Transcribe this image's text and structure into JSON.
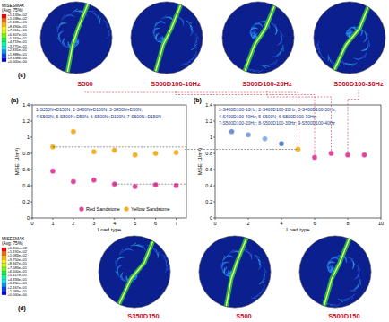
{
  "chart_data": [
    {
      "type": "scatter",
      "title": "(a)",
      "annotations": [
        "1-S350N+D150N; 2-S400N+D100N; 3-S450N+D50N;",
        "4-S500N; 5-S500N+D50N; 6-S500N+D100N; 7-S500N+D150N"
      ],
      "x_label": "Load type",
      "y_label": "MSE (J/m³)",
      "x": [
        1,
        2,
        3,
        4,
        5,
        6,
        7
      ],
      "series": [
        {
          "name": "Red Sandstone",
          "color": "#e0449e",
          "values": [
            0.58,
            0.45,
            0.47,
            0.42,
            0.39,
            0.41,
            0.4
          ]
        },
        {
          "name": "Yellow Sandstone",
          "color": "#f0b024",
          "values": [
            0.88,
            1.07,
            0.82,
            0.84,
            0.78,
            0.8,
            0.81
          ]
        }
      ],
      "xlim": [
        0,
        7.5
      ],
      "xticks": [
        0,
        1,
        2,
        3,
        4,
        5,
        6,
        7
      ],
      "ylim": [
        0,
        1.4
      ],
      "yticks": [
        0,
        0.2,
        0.4,
        0.6,
        0.8,
        1,
        1.2,
        1.4
      ],
      "legend": "bottom",
      "marker": "circle"
    },
    {
      "type": "scatter",
      "title": "(b)",
      "annotations": [
        "1-S400D100-10Hz; 2-S400D100-20Hz; 3-S400D100-30Hz;",
        "4-S400D100-40Hz; 5-S500N; 6-S500D100-10Hz;",
        "7-S500D100-20Hz; 8-S500D100-30Hz; 9-S500D100-40Hz"
      ],
      "x_label": "Load type",
      "y_label": "MSE (J/m³)",
      "x": [
        1,
        2,
        3,
        4,
        5,
        6,
        7,
        8,
        9
      ],
      "values": [
        1.07,
        1.03,
        0.98,
        0.92,
        0.85,
        0.75,
        0.8,
        0.78,
        0.78
      ],
      "colors": [
        "#6f8fd0",
        "#7f9fd8",
        "#8fb0e0",
        "#5a80c8",
        "#f0b024",
        "#e0449e",
        "#e0449e",
        "#e0449e",
        "#e0449e"
      ],
      "xlim": [
        0,
        10
      ],
      "xticks": [
        0,
        2,
        4,
        6,
        8,
        10
      ],
      "ylim": [
        0,
        1.4
      ],
      "yticks": [
        0,
        0.2,
        0.4,
        0.6,
        0.8,
        1,
        1.2,
        1.4
      ],
      "marker": "circle"
    }
  ],
  "contour_panels": [
    {
      "label": "(c)",
      "legend_title": "MISESMAX",
      "legend_subtitle": "(Avg: 75%)",
      "legend_labels": [
        "+1.133e+02",
        "+1.038e+02",
        "+9.438e+01",
        "+8.494e+01",
        "+7.551e+01",
        "+6.607e+01",
        "+5.663e+01",
        "+4.719e+01",
        "+3.775e+01",
        "+2.831e+01",
        "+1.888e+01",
        "+9.438e+00",
        "+0.000e+00"
      ],
      "images": [
        "S500",
        "S500D100-10Hz",
        "S500D100-20Hz",
        "S500D100-30Hz"
      ]
    },
    {
      "label": "(d)",
      "legend_title": "MISESMAX",
      "legend_subtitle": "(Avg: 75%)",
      "legend_labels": [
        "+1.300e+02",
        "+1.192e+02",
        "+1.083e+02",
        "+9.750e+01",
        "+8.667e+01",
        "+7.583e+01",
        "+6.500e+01",
        "+5.417e+01",
        "+4.333e+01",
        "+3.250e+01",
        "+2.167e+01",
        "+1.083e+01",
        "+0.000e+00"
      ],
      "images": [
        "S350D150",
        "S500",
        "S500D150"
      ]
    }
  ]
}
